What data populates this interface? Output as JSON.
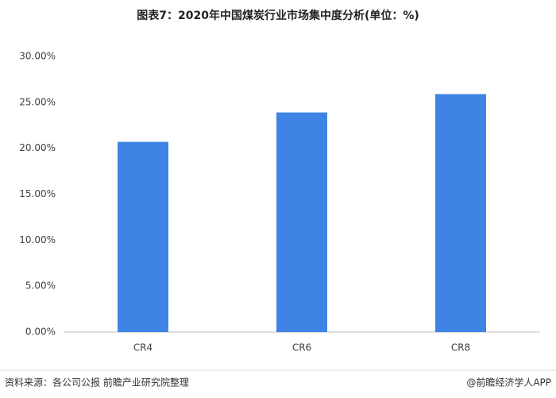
{
  "chart_data": {
    "type": "bar",
    "title": "图表7：2020年中国煤炭行业市场集中度分析(单位：%)",
    "categories": [
      "CR4",
      "CR6",
      "CR8"
    ],
    "values": [
      20.7,
      23.9,
      25.9
    ],
    "color": "#3f84e5",
    "ylim": [
      0,
      30
    ],
    "yticks": [
      {
        "value": 0,
        "label": "0.00%"
      },
      {
        "value": 5,
        "label": "5.00%"
      },
      {
        "value": 10,
        "label": "10.00%"
      },
      {
        "value": 15,
        "label": "15.00%"
      },
      {
        "value": 20,
        "label": "20.00%"
      },
      {
        "value": 25,
        "label": "25.00%"
      },
      {
        "value": 30,
        "label": "30.00%"
      }
    ],
    "grid": false,
    "source": "资料来源：各公司公报 前瞻产业研究院整理",
    "credit": "@前瞻经济学人APP"
  }
}
